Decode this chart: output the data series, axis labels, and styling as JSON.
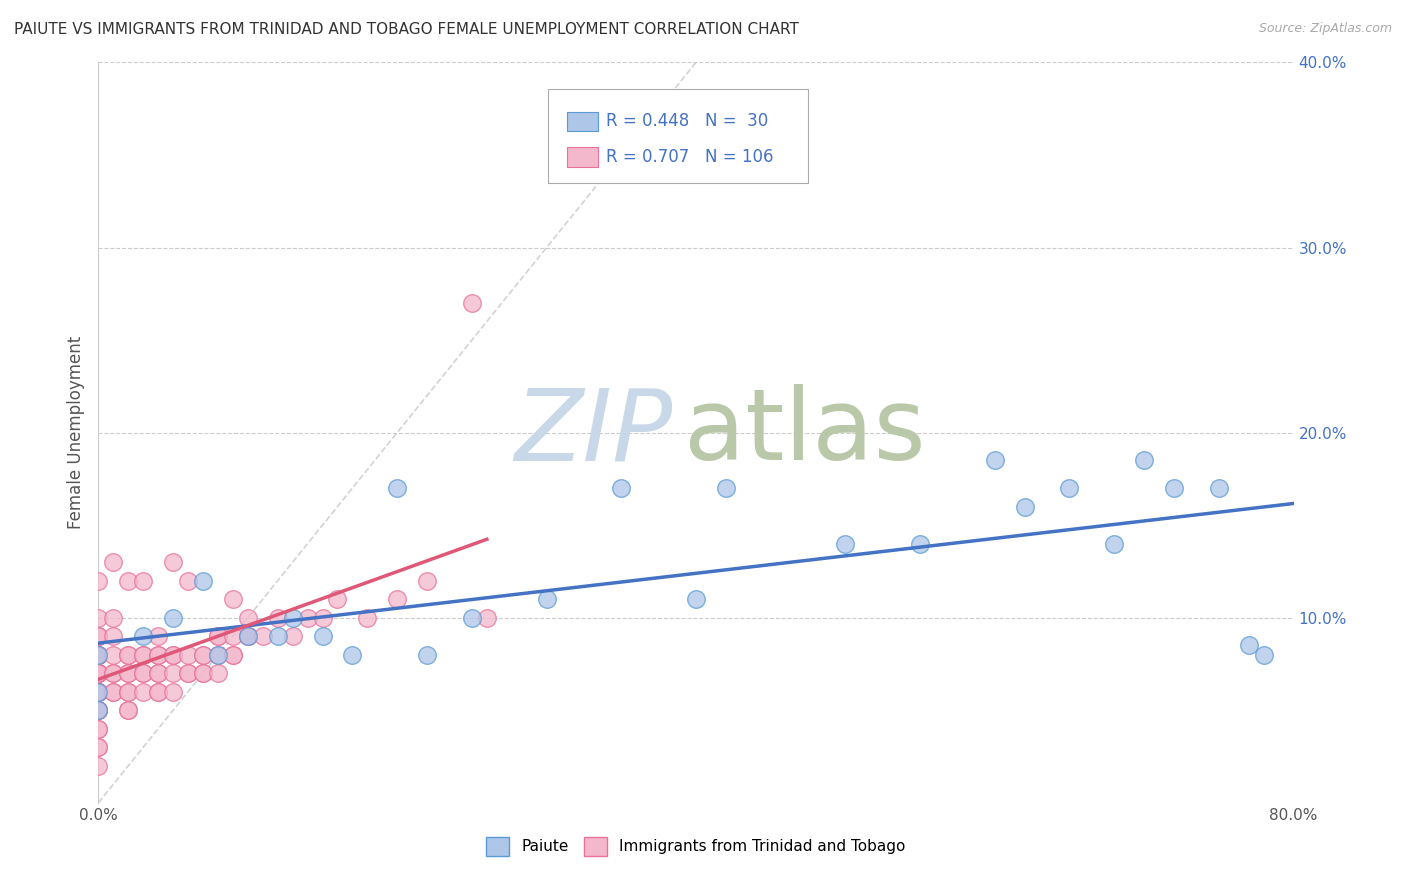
{
  "title": "PAIUTE VS IMMIGRANTS FROM TRINIDAD AND TOBAGO FEMALE UNEMPLOYMENT CORRELATION CHART",
  "source": "Source: ZipAtlas.com",
  "ylabel": "Female Unemployment",
  "xlim": [
    0,
    0.8
  ],
  "ylim": [
    0,
    0.4
  ],
  "xticks": [
    0.0,
    0.8
  ],
  "xticklabels": [
    "0.0%",
    "80.0%"
  ],
  "yticks": [],
  "right_yticks": [
    0.1,
    0.2,
    0.3,
    0.4
  ],
  "right_yticklabels": [
    "10.0%",
    "20.0%",
    "30.0%",
    "40.0%"
  ],
  "grid_yticks": [
    0.1,
    0.2,
    0.3,
    0.4
  ],
  "paiute_color": "#aec6e8",
  "paiute_edge_color": "#5b9bd5",
  "paiute_line_color": "#4472c4",
  "trinidad_color": "#f4b8cc",
  "trinidad_edge_color": "#e8729a",
  "trinidad_line_color": "#e05878",
  "paiute_R": 0.448,
  "paiute_N": 30,
  "trinidad_R": 0.707,
  "trinidad_N": 106,
  "watermark_zip_color": "#c8d8e8",
  "watermark_atlas_color": "#b8c8a8",
  "background_color": "#ffffff",
  "paiute_x": [
    0.0,
    0.0,
    0.0,
    0.03,
    0.05,
    0.07,
    0.08,
    0.1,
    0.12,
    0.13,
    0.15,
    0.17,
    0.2,
    0.22,
    0.25,
    0.3,
    0.35,
    0.4,
    0.42,
    0.5,
    0.55,
    0.6,
    0.62,
    0.65,
    0.68,
    0.7,
    0.72,
    0.75,
    0.77,
    0.78
  ],
  "paiute_y": [
    0.05,
    0.06,
    0.08,
    0.09,
    0.1,
    0.12,
    0.08,
    0.09,
    0.09,
    0.1,
    0.09,
    0.08,
    0.17,
    0.08,
    0.1,
    0.11,
    0.17,
    0.11,
    0.17,
    0.14,
    0.14,
    0.185,
    0.16,
    0.17,
    0.14,
    0.185,
    0.17,
    0.17,
    0.085,
    0.08
  ],
  "trinidad_x": [
    0.0,
    0.0,
    0.0,
    0.0,
    0.0,
    0.0,
    0.0,
    0.0,
    0.0,
    0.0,
    0.0,
    0.0,
    0.0,
    0.0,
    0.0,
    0.0,
    0.0,
    0.0,
    0.0,
    0.0,
    0.0,
    0.0,
    0.0,
    0.0,
    0.0,
    0.0,
    0.0,
    0.0,
    0.0,
    0.0,
    0.0,
    0.0,
    0.0,
    0.0,
    0.0,
    0.0,
    0.0,
    0.0,
    0.0,
    0.0,
    0.0,
    0.01,
    0.01,
    0.01,
    0.01,
    0.01,
    0.01,
    0.01,
    0.01,
    0.02,
    0.02,
    0.02,
    0.02,
    0.02,
    0.02,
    0.02,
    0.02,
    0.02,
    0.03,
    0.03,
    0.03,
    0.03,
    0.03,
    0.03,
    0.04,
    0.04,
    0.04,
    0.04,
    0.04,
    0.04,
    0.04,
    0.05,
    0.05,
    0.05,
    0.05,
    0.05,
    0.06,
    0.06,
    0.06,
    0.06,
    0.07,
    0.07,
    0.07,
    0.07,
    0.08,
    0.08,
    0.08,
    0.08,
    0.09,
    0.09,
    0.09,
    0.09,
    0.1,
    0.1,
    0.1,
    0.11,
    0.12,
    0.13,
    0.14,
    0.15,
    0.16,
    0.18,
    0.2,
    0.22,
    0.25,
    0.26
  ],
  "trinidad_y": [
    0.02,
    0.03,
    0.03,
    0.04,
    0.04,
    0.05,
    0.05,
    0.05,
    0.06,
    0.06,
    0.06,
    0.06,
    0.06,
    0.07,
    0.07,
    0.07,
    0.07,
    0.07,
    0.07,
    0.07,
    0.08,
    0.08,
    0.08,
    0.08,
    0.08,
    0.08,
    0.08,
    0.08,
    0.09,
    0.09,
    0.1,
    0.06,
    0.06,
    0.07,
    0.07,
    0.07,
    0.08,
    0.09,
    0.05,
    0.05,
    0.12,
    0.06,
    0.06,
    0.07,
    0.07,
    0.08,
    0.09,
    0.1,
    0.13,
    0.05,
    0.05,
    0.06,
    0.06,
    0.07,
    0.07,
    0.08,
    0.08,
    0.12,
    0.06,
    0.07,
    0.07,
    0.08,
    0.08,
    0.12,
    0.06,
    0.06,
    0.07,
    0.07,
    0.08,
    0.08,
    0.09,
    0.06,
    0.07,
    0.08,
    0.08,
    0.13,
    0.07,
    0.07,
    0.08,
    0.12,
    0.07,
    0.07,
    0.08,
    0.08,
    0.07,
    0.08,
    0.09,
    0.09,
    0.08,
    0.08,
    0.09,
    0.11,
    0.09,
    0.09,
    0.1,
    0.09,
    0.1,
    0.09,
    0.1,
    0.1,
    0.11,
    0.1,
    0.11,
    0.12,
    0.27,
    0.1
  ]
}
